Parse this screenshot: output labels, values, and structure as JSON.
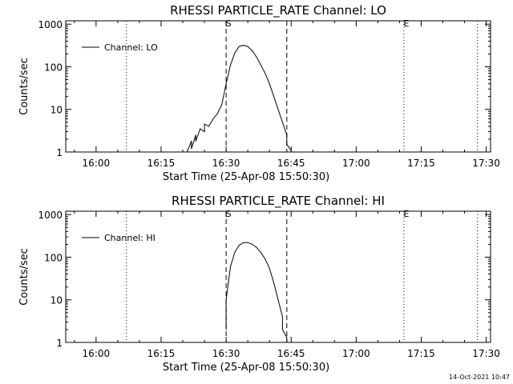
{
  "footer": {
    "timestamp": "14-Oct-2021 10:47"
  },
  "chart_data": [
    {
      "type": "line",
      "title": "RHESSI PARTICLE_RATE Channel: LO",
      "xlabel": "Start Time (25-Apr-08 15:50:30)",
      "ylabel": "Counts/sec",
      "y_scale": "log",
      "xlim": [
        "15:53",
        "17:31"
      ],
      "ylim": [
        1,
        1200
      ],
      "x_ticks": [
        "16:00",
        "16:15",
        "16:30",
        "16:45",
        "17:00",
        "17:15",
        "17:30"
      ],
      "y_ticks": [
        "1",
        "10",
        "100",
        "1000"
      ],
      "series": [
        {
          "name": "Channel: LO",
          "x": [
            "16:21",
            "16:22",
            "16:22",
            "16:23",
            "16:23",
            "16:24",
            "16:25",
            "16:25",
            "16:26",
            "16:27",
            "16:28",
            "16:29",
            "16:30",
            "16:31",
            "16:32",
            "16:33",
            "16:34",
            "16:35",
            "16:36",
            "16:37",
            "16:38",
            "16:39",
            "16:40",
            "16:41",
            "16:42",
            "16:43",
            "16:44",
            "16:44",
            "16:45",
            "16:45"
          ],
          "y": [
            1,
            1.8,
            1.2,
            2.5,
            1.8,
            3.5,
            3,
            4.5,
            4,
            6,
            8,
            13,
            40,
            110,
            210,
            300,
            320,
            300,
            240,
            170,
            110,
            70,
            40,
            20,
            10,
            5,
            2.5,
            1.5,
            1.1,
            1
          ]
        }
      ],
      "vertical_markers": [
        {
          "x": "16:07",
          "style": "dotted",
          "label": ""
        },
        {
          "x": "16:30",
          "style": "dashed",
          "label": "S"
        },
        {
          "x": "16:44",
          "style": "dashed",
          "label": ""
        },
        {
          "x": "17:11",
          "style": "dotted",
          "label": "E"
        },
        {
          "x": "17:28",
          "style": "dotted",
          "label": ""
        }
      ],
      "legend_position": "top-left"
    },
    {
      "type": "line",
      "title": "RHESSI PARTICLE_RATE Channel: HI",
      "xlabel": "Start Time (25-Apr-08 15:50:30)",
      "ylabel": "Counts/sec",
      "y_scale": "log",
      "xlim": [
        "15:53",
        "17:31"
      ],
      "ylim": [
        1,
        1200
      ],
      "x_ticks": [
        "16:00",
        "16:15",
        "16:30",
        "16:45",
        "17:00",
        "17:15",
        "17:30"
      ],
      "y_ticks": [
        "1",
        "10",
        "100",
        "1000"
      ],
      "series": [
        {
          "name": "Channel: HI",
          "x": [
            "16:30",
            "16:30",
            "16:31",
            "16:32",
            "16:33",
            "16:34",
            "16:35",
            "16:36",
            "16:37",
            "16:38",
            "16:39",
            "16:40",
            "16:41",
            "16:42",
            "16:43",
            "16:43",
            "16:44",
            "16:44"
          ],
          "y": [
            2,
            10,
            60,
            130,
            190,
            220,
            220,
            200,
            170,
            130,
            90,
            55,
            25,
            10,
            4,
            2,
            1.3,
            1
          ]
        }
      ],
      "vertical_markers": [
        {
          "x": "16:07",
          "style": "dotted",
          "label": ""
        },
        {
          "x": "16:30",
          "style": "dashed",
          "label": "S"
        },
        {
          "x": "16:44",
          "style": "dashed",
          "label": ""
        },
        {
          "x": "17:11",
          "style": "dotted",
          "label": "E"
        },
        {
          "x": "17:28",
          "style": "dotted",
          "label": ""
        }
      ],
      "legend_position": "top-left"
    }
  ]
}
